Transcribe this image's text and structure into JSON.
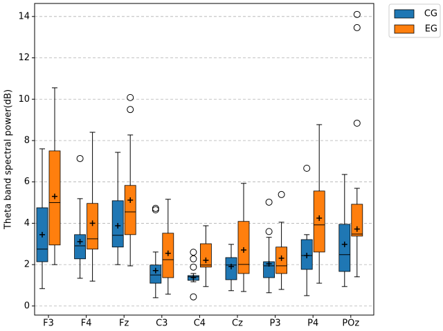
{
  "chart_data": {
    "type": "box",
    "y_label": "Theta band spectral power(dB)",
    "categories": [
      "F3",
      "F4",
      "Fz",
      "C3",
      "C4",
      "Cz",
      "P3",
      "P4",
      "POz"
    ],
    "ylim": [
      -0.44,
      14.63
    ],
    "yticks": [
      0,
      2,
      4,
      6,
      8,
      10,
      12,
      14
    ],
    "grid": true,
    "legend": "upper right outside",
    "series": [
      {
        "name": "CG",
        "color": "#1f77b4",
        "low": [
          0.84,
          1.34,
          2.0,
          0.4,
          1.17,
          0.74,
          0.64,
          0.5,
          0.94
        ],
        "q1": [
          2.14,
          2.28,
          2.85,
          1.1,
          1.24,
          1.27,
          1.37,
          1.77,
          1.67
        ],
        "median": [
          2.75,
          2.91,
          3.42,
          1.5,
          1.41,
          1.98,
          1.94,
          2.44,
          2.48
        ],
        "q3": [
          4.75,
          3.45,
          5.09,
          1.98,
          1.47,
          2.34,
          2.14,
          3.21,
          3.95
        ],
        "high": [
          7.6,
          5.19,
          7.43,
          2.61,
          1.57,
          2.98,
          3.32,
          3.45,
          6.36
        ],
        "mean": [
          3.45,
          3.11,
          3.88,
          1.71,
          1.37,
          1.91,
          2.04,
          2.44,
          2.98
        ],
        "outliers": [
          [],
          [
            7.13
          ],
          [],
          [
            4.72,
            4.65
          ],
          [
            2.6,
            2.28,
            1.88,
            0.44
          ],
          [],
          [
            3.6,
            5.02
          ],
          [
            6.66
          ],
          []
        ]
      },
      {
        "name": "EG",
        "color": "#ff7f0e",
        "low": [
          2.0,
          1.2,
          1.94,
          0.57,
          0.94,
          0.7,
          0.8,
          1.1,
          1.41
        ],
        "q1": [
          2.95,
          2.75,
          3.45,
          1.37,
          1.88,
          1.57,
          1.57,
          2.61,
          3.38
        ],
        "median": [
          5.0,
          3.25,
          4.55,
          2.24,
          1.98,
          2.01,
          1.94,
          3.92,
          3.48
        ],
        "q3": [
          7.5,
          4.96,
          5.83,
          3.52,
          3.01,
          4.09,
          2.85,
          5.56,
          4.92
        ],
        "high": [
          10.55,
          8.4,
          8.27,
          5.16,
          3.88,
          5.93,
          4.05,
          8.77,
          5.69
        ],
        "mean": [
          5.3,
          4.0,
          5.12,
          2.55,
          2.21,
          2.71,
          2.31,
          4.25,
          3.72
        ],
        "outliers": [
          [],
          [],
          [
            10.08,
            9.5
          ],
          [],
          [],
          [],
          [
            5.39
          ],
          [],
          [
            14.1,
            13.46,
            8.84
          ]
        ]
      }
    ]
  }
}
